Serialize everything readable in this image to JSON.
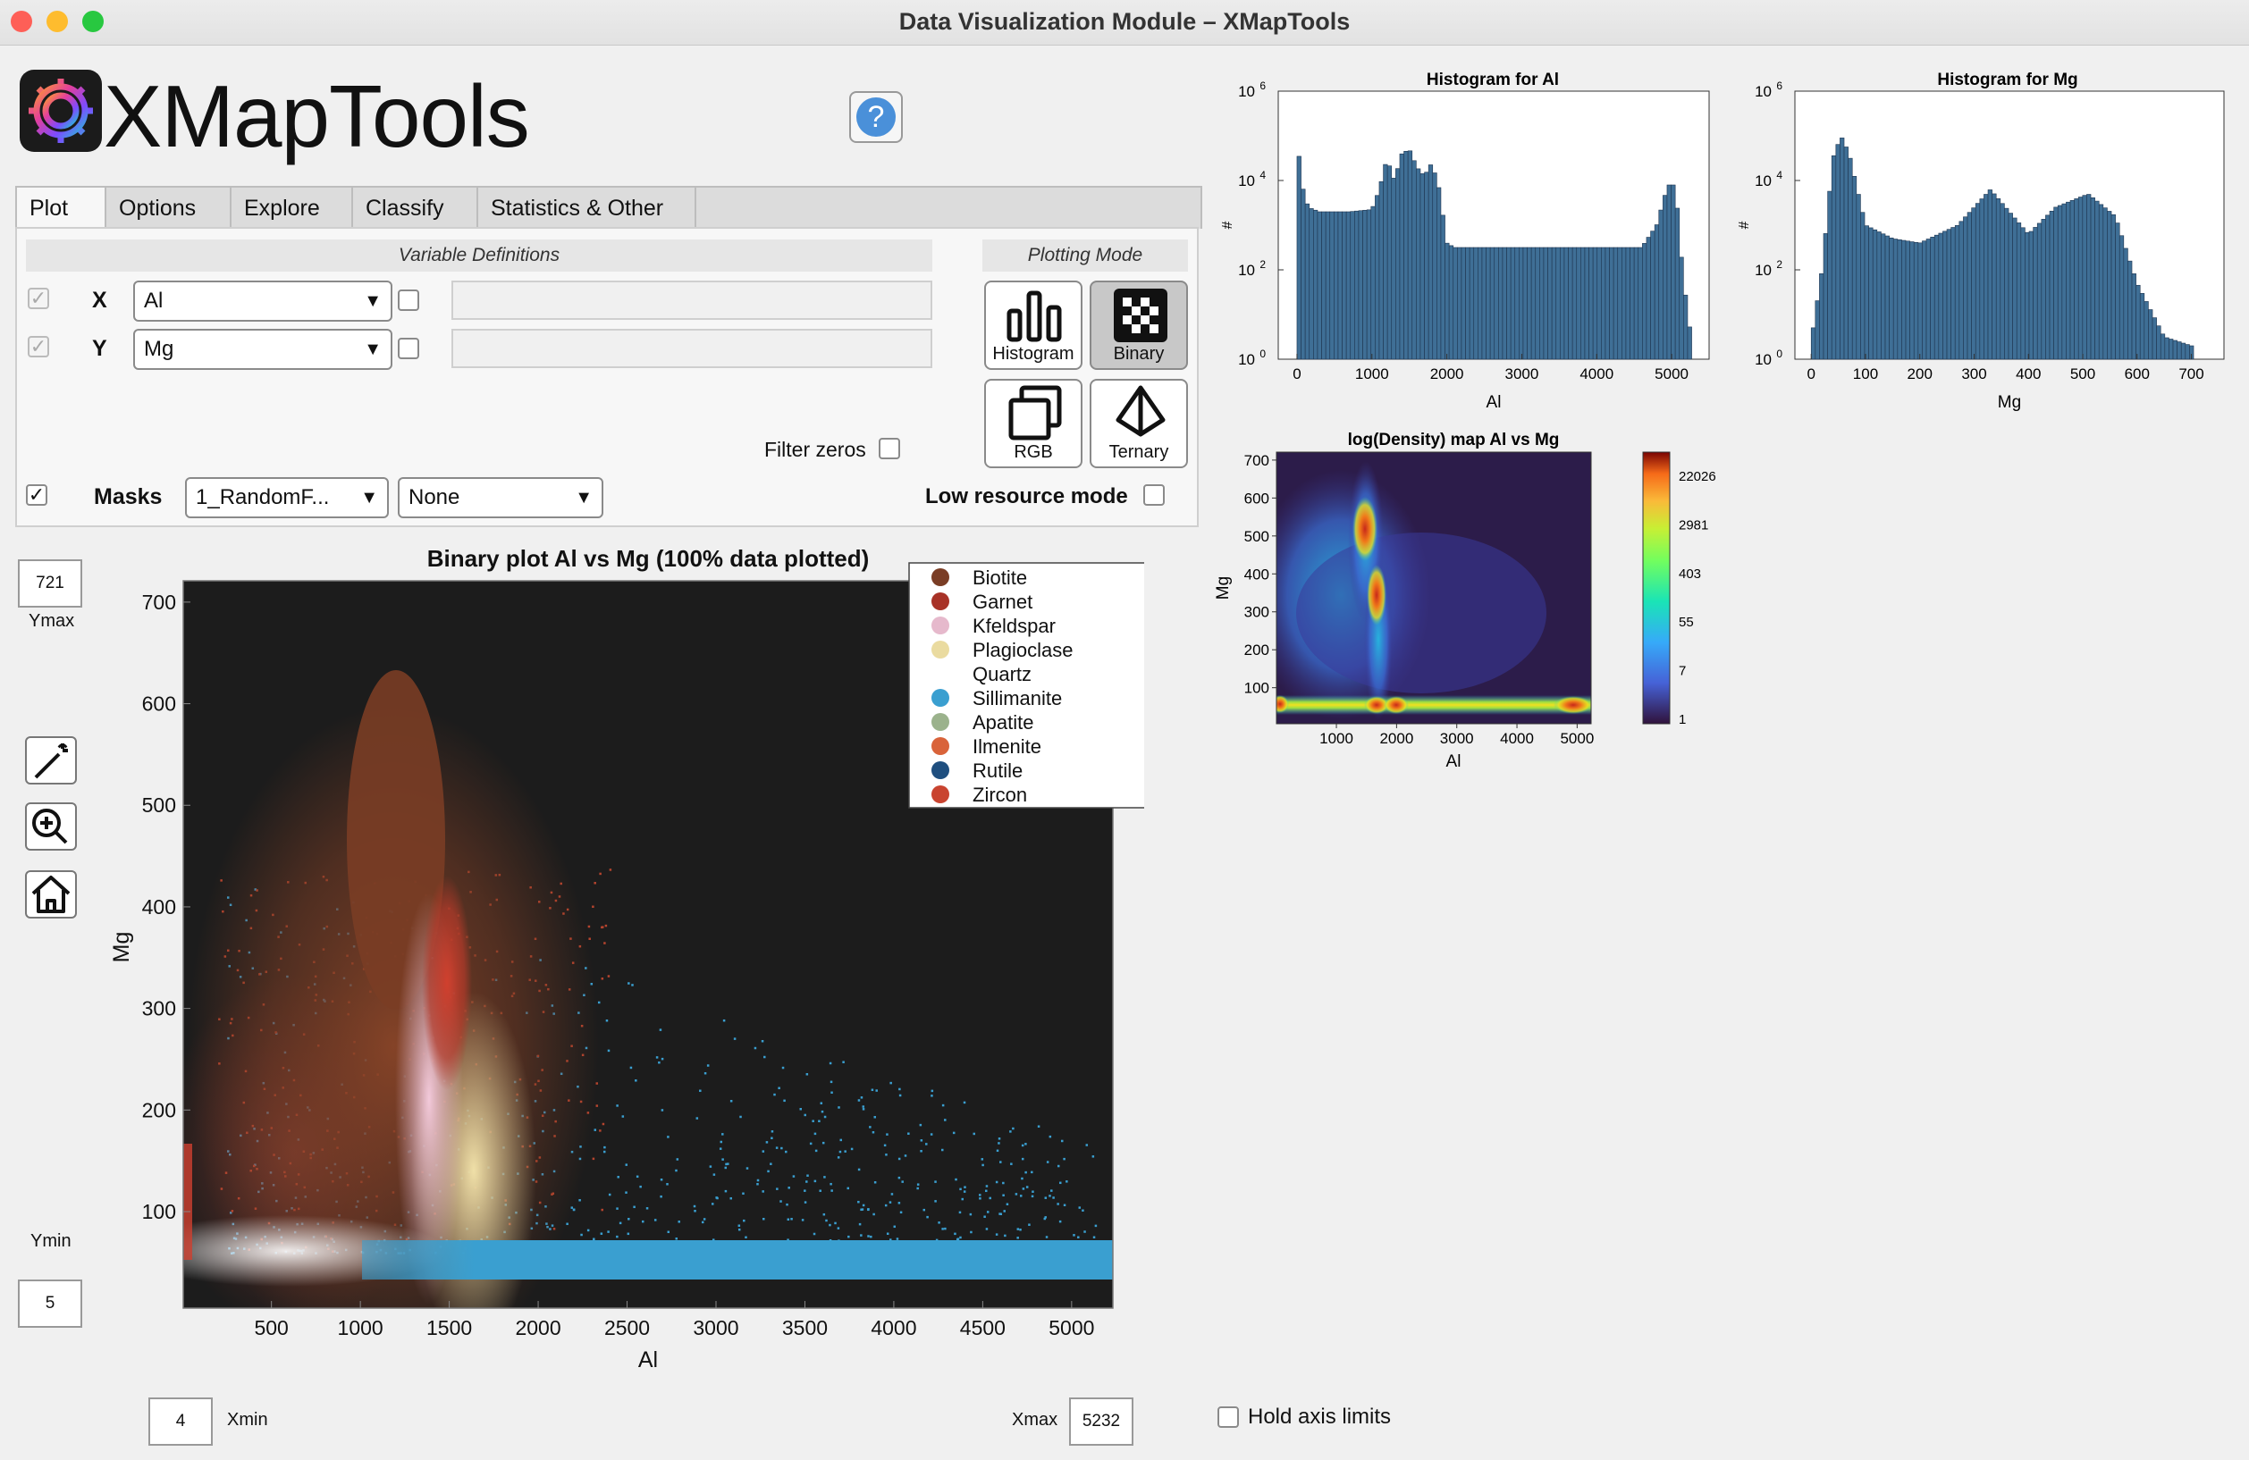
{
  "window": {
    "title": "Data Visualization Module – XMapTools"
  },
  "app": {
    "name": "XMapTools"
  },
  "tabs": [
    "Plot",
    "Options",
    "Explore",
    "Classify",
    "Statistics & Other"
  ],
  "variables": {
    "header": "Variable Definitions",
    "x_label": "X",
    "x_value": "Al",
    "y_label": "Y",
    "y_value": "Mg"
  },
  "plotting_mode": {
    "header": "Plotting Mode",
    "buttons": [
      "Histogram",
      "Binary",
      "RGB",
      "Ternary"
    ],
    "selected": "Binary"
  },
  "filter_zeros": {
    "label": "Filter zeros",
    "checked": false
  },
  "masks": {
    "label": "Masks",
    "checked": true,
    "value": "1_RandomF...",
    "second": "None"
  },
  "low_resource": {
    "label": "Low resource mode",
    "checked": false
  },
  "axis_limits": {
    "ymax": "721",
    "ymax_label": "Ymax",
    "ymin": "5",
    "ymin_label": "Ymin",
    "xmin": "4",
    "xmin_label": "Xmin",
    "xmax": "5232",
    "xmax_label": "Xmax"
  },
  "hold_axis": {
    "label": "Hold axis limits",
    "checked": false
  },
  "colors": {
    "sillimanite": "#3a9fd0",
    "garnet": "#b33a2a",
    "biotite": "#7a3d25",
    "kfeldspar": "#e6b9cc",
    "plagioclase": "#e8d9a0",
    "plot_bg": "#1c1c1c",
    "hist_bar": "#3f6f96"
  },
  "binary_plot": {
    "title": "Binary plot Al vs Mg (100% data plotted)",
    "xlabel": "Al",
    "ylabel": "Mg",
    "xticks": [
      "500",
      "1000",
      "1500",
      "2000",
      "2500",
      "3000",
      "3500",
      "4000",
      "4500",
      "5000"
    ],
    "yticks": [
      "700",
      "600",
      "500",
      "400",
      "300",
      "200",
      "100"
    ],
    "legend": [
      {
        "name": "Biotite",
        "color": "#7a3d25"
      },
      {
        "name": "Garnet",
        "color": "#a83227"
      },
      {
        "name": "Kfeldspar",
        "color": "#e6b9cc"
      },
      {
        "name": "Plagioclase",
        "color": "#eadba0"
      },
      {
        "name": "Quartz",
        "color": "#ffffff"
      },
      {
        "name": "Sillimanite",
        "color": "#3a9fd0"
      },
      {
        "name": "Apatite",
        "color": "#9bb28c"
      },
      {
        "name": "Ilmenite",
        "color": "#d9633a"
      },
      {
        "name": "Rutile",
        "color": "#1f4f7f"
      },
      {
        "name": "Zircon",
        "color": "#c94430"
      }
    ]
  },
  "hist_al": {
    "title": "Histogram for Al",
    "xlabel": "Al",
    "ylabel": "#",
    "xticks": [
      "0",
      "1000",
      "2000",
      "3000",
      "4000",
      "5000"
    ],
    "yticks": [
      {
        "b": "10",
        "e": "6"
      },
      {
        "b": "10",
        "e": "4"
      },
      {
        "b": "10",
        "e": "2"
      },
      {
        "b": "10",
        "e": "0"
      }
    ]
  },
  "hist_mg": {
    "title": "Histogram for Mg",
    "xlabel": "Mg",
    "ylabel": "#",
    "xticks": [
      "0",
      "100",
      "200",
      "300",
      "400",
      "500",
      "600",
      "700"
    ],
    "yticks": [
      {
        "b": "10",
        "e": "6"
      },
      {
        "b": "10",
        "e": "4"
      },
      {
        "b": "10",
        "e": "2"
      },
      {
        "b": "10",
        "e": "0"
      }
    ]
  },
  "density_map": {
    "title": "log(Density) map Al vs Mg",
    "xlabel": "Al",
    "ylabel": "Mg",
    "xticks": [
      "1000",
      "2000",
      "3000",
      "4000",
      "5000"
    ],
    "yticks": [
      "700",
      "600",
      "500",
      "400",
      "300",
      "200",
      "100"
    ],
    "colorbar_ticks": [
      "22026",
      "2981",
      "403",
      "55",
      "7",
      "1"
    ]
  },
  "chart_data": [
    {
      "type": "bar",
      "title": "Histogram for Al",
      "xlabel": "Al",
      "ylabel": "#",
      "scale_y": "log",
      "ylim_exp": [
        0,
        6
      ],
      "xlim": [
        -250,
        5500
      ],
      "profile_x": [
        0,
        50,
        150,
        300,
        700,
        1000,
        1100,
        1200,
        1300,
        1400,
        1500,
        1600,
        1700,
        1800,
        1900,
        2000,
        2100,
        3000,
        4000,
        4600,
        4800,
        4950,
        5050,
        5150,
        5250
      ],
      "profile_log10": [
        5.2,
        4.0,
        3.4,
        3.3,
        3.3,
        3.35,
        3.8,
        4.5,
        4.0,
        4.6,
        4.7,
        4.3,
        4.1,
        4.4,
        3.8,
        2.6,
        2.5,
        2.5,
        2.5,
        2.5,
        3.0,
        3.9,
        3.9,
        1.9,
        0.6
      ]
    },
    {
      "type": "bar",
      "title": "Histogram for Mg",
      "xlabel": "Mg",
      "ylabel": "#",
      "scale_y": "log",
      "ylim_exp": [
        0,
        6
      ],
      "xlim": [
        -30,
        760
      ],
      "profile_x": [
        0,
        20,
        40,
        55,
        70,
        100,
        150,
        200,
        270,
        330,
        400,
        450,
        510,
        560,
        600,
        650,
        700
      ],
      "profile_log10": [
        0.4,
        2.0,
        4.5,
        5.0,
        4.6,
        3.0,
        2.7,
        2.6,
        3.0,
        3.8,
        2.8,
        3.4,
        3.7,
        3.2,
        1.7,
        0.5,
        0.3
      ]
    },
    {
      "type": "scatter",
      "title": "Binary plot Al vs Mg (100% data plotted)",
      "xlabel": "Al",
      "ylabel": "Mg",
      "xlim": [
        4,
        5232
      ],
      "ylim": [
        5,
        721
      ],
      "series": [
        {
          "name": "Sillimanite",
          "x_range": [
            150,
            5232
          ],
          "y_center": 60
        },
        {
          "name": "Biotite",
          "x_range": [
            400,
            1800
          ],
          "y_peak": 650
        },
        {
          "name": "Garnet",
          "x_range": [
            1350,
            1650
          ],
          "y_range": [
            250,
            380
          ]
        },
        {
          "name": "Kfeldspar",
          "x_range": [
            1250,
            1500
          ],
          "y_range": [
            100,
            400
          ]
        },
        {
          "name": "Plagioclase",
          "x_range": [
            1500,
            1900
          ],
          "y_range": [
            50,
            300
          ]
        }
      ]
    },
    {
      "type": "heatmap",
      "title": "log(Density) map Al vs Mg",
      "xlabel": "Al",
      "ylabel": "Mg",
      "colorbar": [
        1,
        7,
        55,
        403,
        2981,
        22026
      ],
      "hotspots": [
        {
          "x": 1200,
          "y": 510
        },
        {
          "x": 1450,
          "y": 330
        },
        {
          "x": 1500,
          "y": 60
        },
        {
          "x": 1800,
          "y": 60
        },
        {
          "x": 5000,
          "y": 60
        }
      ]
    }
  ]
}
